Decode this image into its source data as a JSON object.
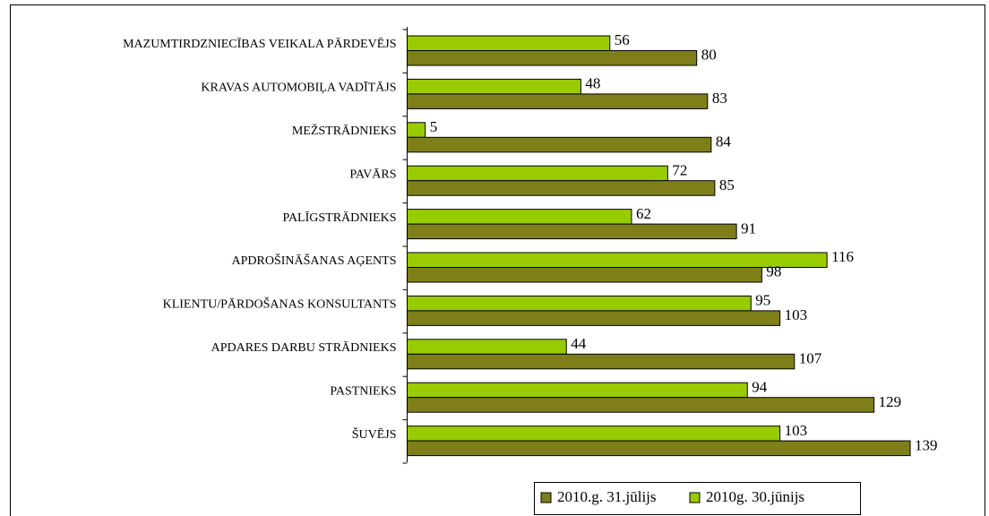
{
  "chart_data": {
    "type": "bar",
    "orientation": "horizontal",
    "categories": [
      "MAZUMTIRDZNIECĪBAS VEIKALA PĀRDEVĒJS",
      "KRAVAS AUTOMOBIĻA VADĪTĀJS",
      "MEŽSTRĀDNIEKS",
      "PAVĀRS",
      "PALĪGSTRĀDNIEKS",
      "APDROŠINĀŠANAS AĢENTS",
      "KLIENTU/PĀRDOŠANAS KONSULTANTS",
      "APDARES DARBU STRĀDNIEKS",
      "PASTNIEKS",
      "ŠUVĒJS"
    ],
    "series": [
      {
        "name": "2010.g. 31.jūlijs",
        "color": "#7f7f1a",
        "values": [
          80,
          83,
          84,
          85,
          91,
          98,
          103,
          107,
          129,
          139
        ]
      },
      {
        "name": "2010g. 30.jūnijs",
        "color": "#99cc00",
        "values": [
          56,
          48,
          5,
          72,
          62,
          116,
          95,
          44,
          94,
          103
        ]
      }
    ],
    "legend": "bottom"
  }
}
